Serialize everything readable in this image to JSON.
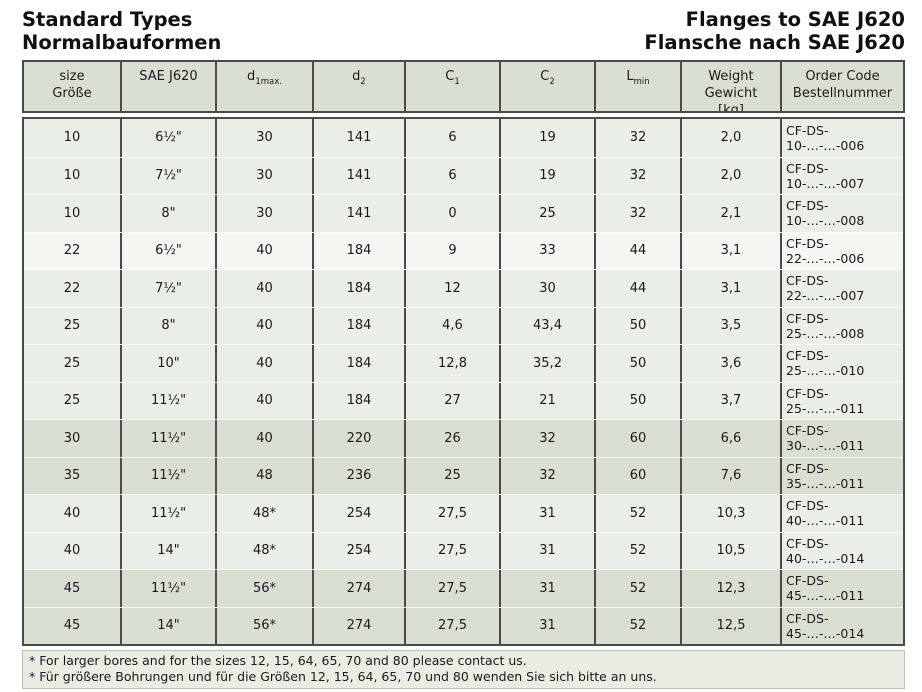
{
  "page": {
    "title_left_line1": "Standard Types",
    "title_left_line2": "Normalbauformen",
    "title_right_line1": "Flanges to SAE J620",
    "title_right_line2": "Flansche nach SAE J620"
  },
  "table": {
    "headers": [
      {
        "key": "size",
        "lines": [
          "size",
          "Größe"
        ]
      },
      {
        "key": "sae-j620",
        "lines": [
          "SAE J620"
        ]
      },
      {
        "key": "d1max",
        "base": "d",
        "sub": "1max."
      },
      {
        "key": "d2",
        "base": "d",
        "sub": "2"
      },
      {
        "key": "c1",
        "base": "C",
        "sub": "1"
      },
      {
        "key": "c2",
        "base": "C",
        "sub": "2"
      },
      {
        "key": "lmin",
        "base": "L",
        "sub": "min"
      },
      {
        "key": "weight",
        "lines": [
          "Weight",
          "Gewicht",
          "[kg]"
        ]
      },
      {
        "key": "order-code",
        "lines": [
          "Order Code",
          "Bestellnummer"
        ]
      }
    ],
    "columns_order": [
      "size",
      "sae",
      "d1max",
      "d2",
      "c1",
      "c2",
      "lmin",
      "weight",
      "order_code"
    ],
    "rows": [
      {
        "size": "10",
        "sae": "6½\"",
        "d1max": "30",
        "d2": "141",
        "c1": "6",
        "c2": "19",
        "lmin": "32",
        "weight": "2,0",
        "order_code": "CF-DS-10-…-…-006",
        "band": "light"
      },
      {
        "size": "10",
        "sae": "7½\"",
        "d1max": "30",
        "d2": "141",
        "c1": "6",
        "c2": "19",
        "lmin": "32",
        "weight": "2,0",
        "order_code": "CF-DS-10-…-…-007",
        "band": "light"
      },
      {
        "size": "10",
        "sae": "8\"",
        "d1max": "30",
        "d2": "141",
        "c1": "0",
        "c2": "25",
        "lmin": "32",
        "weight": "2,1",
        "order_code": "CF-DS-10-…-…-008",
        "band": "light"
      },
      {
        "size": "22",
        "sae": "6½\"",
        "d1max": "40",
        "d2": "184",
        "c1": "9",
        "c2": "33",
        "lmin": "44",
        "weight": "3,1",
        "order_code": "CF-DS-22-…-…-006",
        "band": "white"
      },
      {
        "size": "22",
        "sae": "7½\"",
        "d1max": "40",
        "d2": "184",
        "c1": "12",
        "c2": "30",
        "lmin": "44",
        "weight": "3,1",
        "order_code": "CF-DS-22-…-…-007",
        "band": "light"
      },
      {
        "size": "25",
        "sae": "8\"",
        "d1max": "40",
        "d2": "184",
        "c1": "4,6",
        "c2": "43,4",
        "lmin": "50",
        "weight": "3,5",
        "order_code": "CF-DS-25-…-…-008",
        "band": "light"
      },
      {
        "size": "25",
        "sae": "10\"",
        "d1max": "40",
        "d2": "184",
        "c1": "12,8",
        "c2": "35,2",
        "lmin": "50",
        "weight": "3,6",
        "order_code": "CF-DS-25-…-…-010",
        "band": "light"
      },
      {
        "size": "25",
        "sae": "11½\"",
        "d1max": "40",
        "d2": "184",
        "c1": "27",
        "c2": "21",
        "lmin": "50",
        "weight": "3,7",
        "order_code": "CF-DS-25-…-…-011",
        "band": "light"
      },
      {
        "size": "30",
        "sae": "11½\"",
        "d1max": "40",
        "d2": "220",
        "c1": "26",
        "c2": "32",
        "lmin": "60",
        "weight": "6,6",
        "order_code": "CF-DS-30-…-…-011",
        "band": "dark"
      },
      {
        "size": "35",
        "sae": "11½\"",
        "d1max": "48",
        "d2": "236",
        "c1": "25",
        "c2": "32",
        "lmin": "60",
        "weight": "7,6",
        "order_code": "CF-DS-35-…-…-011",
        "band": "dark"
      },
      {
        "size": "40",
        "sae": "11½\"",
        "d1max": "48*",
        "d2": "254",
        "c1": "27,5",
        "c2": "31",
        "lmin": "52",
        "weight": "10,3",
        "order_code": "CF-DS-40-…-…-011",
        "band": "light"
      },
      {
        "size": "40",
        "sae": "14\"",
        "d1max": "48*",
        "d2": "254",
        "c1": "27,5",
        "c2": "31",
        "lmin": "52",
        "weight": "10,5",
        "order_code": "CF-DS-40-…-…-014",
        "band": "light"
      },
      {
        "size": "45",
        "sae": "11½\"",
        "d1max": "56*",
        "d2": "274",
        "c1": "27,5",
        "c2": "31",
        "lmin": "52",
        "weight": "12,3",
        "order_code": "CF-DS-45-…-…-011",
        "band": "dark"
      },
      {
        "size": "45",
        "sae": "14\"",
        "d1max": "56*",
        "d2": "274",
        "c1": "27,5",
        "c2": "31",
        "lmin": "52",
        "weight": "12,5",
        "order_code": "CF-DS-45-…-…-014",
        "band": "dark"
      }
    ]
  },
  "footnotes": {
    "en": "* For larger bores and for the sizes 12, 15, 64, 65, 70 and 80 please contact us.",
    "de": "* Für größere Bohrungen und für die Größen 12, 15, 64, 65, 70 und 80 wenden Sie sich bitte an uns."
  },
  "colors": {
    "header_bg": "#d9ded2",
    "row_light": "#e9eee6",
    "row_white": "#f4f6f1",
    "row_dark": "#d9ded2",
    "footnote_bg": "#e9ece3",
    "border_dark": "#4a4a4a"
  }
}
